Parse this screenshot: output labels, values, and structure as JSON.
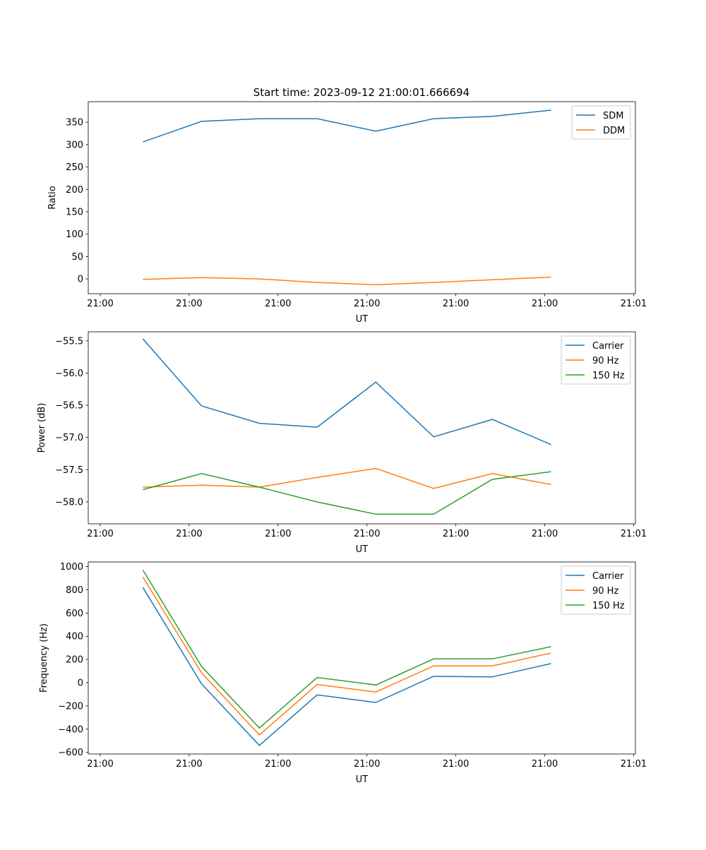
{
  "title": "Start time: 2023-09-12 21:00:01.666694",
  "colors": {
    "blue": "#1f77b4",
    "orange": "#ff7f0e",
    "green": "#2ca02c"
  },
  "chart_data": [
    {
      "type": "line",
      "xlabel": "UT",
      "ylabel": "Ratio",
      "x": [
        4.8,
        11.4,
        17.9,
        24.4,
        31.0,
        37.5,
        44.1,
        50.7
      ],
      "xlim": [
        -1.35,
        60.2
      ],
      "xticks": [
        0,
        10,
        20,
        30,
        40,
        50,
        60
      ],
      "xtick_labels": [
        "21:00",
        "21:00",
        "21:00",
        "21:00",
        "21:00",
        "21:00",
        "21:01"
      ],
      "ylim": [
        -33,
        396
      ],
      "yticks": [
        0,
        50,
        100,
        150,
        200,
        250,
        300,
        350
      ],
      "ytick_labels": [
        "0",
        "50",
        "100",
        "150",
        "200",
        "250",
        "300",
        "350"
      ],
      "legend": "top-right",
      "series": [
        {
          "name": "SDM",
          "color": "#1f77b4",
          "values": [
            306,
            352,
            358,
            358,
            330,
            358,
            363,
            377
          ]
        },
        {
          "name": "DDM",
          "color": "#ff7f0e",
          "values": [
            -1,
            3,
            0,
            -8,
            -13,
            -8,
            -2,
            4
          ]
        }
      ]
    },
    {
      "type": "line",
      "xlabel": "UT",
      "ylabel": "Power (dB)",
      "x": [
        4.8,
        11.4,
        17.9,
        24.4,
        31.0,
        37.5,
        44.1,
        50.7
      ],
      "xlim": [
        -1.35,
        60.2
      ],
      "xticks": [
        0,
        10,
        20,
        30,
        40,
        50,
        60
      ],
      "xtick_labels": [
        "21:00",
        "21:00",
        "21:00",
        "21:00",
        "21:00",
        "21:00",
        "21:01"
      ],
      "ylim": [
        -58.34,
        -55.36
      ],
      "yticks": [
        -58.0,
        -57.5,
        -57.0,
        -56.5,
        -56.0,
        -55.5
      ],
      "ytick_labels": [
        "−58.0",
        "−57.5",
        "−57.0",
        "−56.5",
        "−56.0",
        "−55.5"
      ],
      "legend": "top-right",
      "series": [
        {
          "name": "Carrier",
          "color": "#1f77b4",
          "values": [
            -55.47,
            -56.51,
            -56.78,
            -56.84,
            -56.14,
            -56.99,
            -56.72,
            -57.11
          ]
        },
        {
          "name": "90 Hz",
          "color": "#ff7f0e",
          "values": [
            -57.77,
            -57.74,
            -57.77,
            -57.62,
            -57.48,
            -57.79,
            -57.56,
            -57.73
          ]
        },
        {
          "name": "150 Hz",
          "color": "#2ca02c",
          "values": [
            -57.81,
            -57.56,
            -57.77,
            -58.0,
            -58.19,
            -58.19,
            -57.65,
            -57.53
          ]
        }
      ]
    },
    {
      "type": "line",
      "xlabel": "UT",
      "ylabel": "Frequency (Hz)",
      "x": [
        4.8,
        11.4,
        17.9,
        24.4,
        31.0,
        37.5,
        44.1,
        50.7
      ],
      "xlim": [
        -1.35,
        60.2
      ],
      "xticks": [
        0,
        10,
        20,
        30,
        40,
        50,
        60
      ],
      "xtick_labels": [
        "21:00",
        "21:00",
        "21:00",
        "21:00",
        "21:00",
        "21:00",
        "21:01"
      ],
      "ylim": [
        -614,
        1040
      ],
      "yticks": [
        -600,
        -400,
        -200,
        0,
        200,
        400,
        600,
        800,
        1000
      ],
      "ytick_labels": [
        "−600",
        "−400",
        "−200",
        "0",
        "200",
        "400",
        "600",
        "800",
        "1000"
      ],
      "legend": "top-right",
      "series": [
        {
          "name": "Carrier",
          "color": "#1f77b4",
          "values": [
            820,
            -10,
            -540,
            -105,
            -170,
            55,
            50,
            165
          ]
        },
        {
          "name": "90 Hz",
          "color": "#ff7f0e",
          "values": [
            910,
            85,
            -450,
            -15,
            -80,
            145,
            145,
            255
          ]
        },
        {
          "name": "150 Hz",
          "color": "#2ca02c",
          "values": [
            970,
            140,
            -390,
            45,
            -20,
            205,
            205,
            310
          ]
        }
      ]
    }
  ]
}
